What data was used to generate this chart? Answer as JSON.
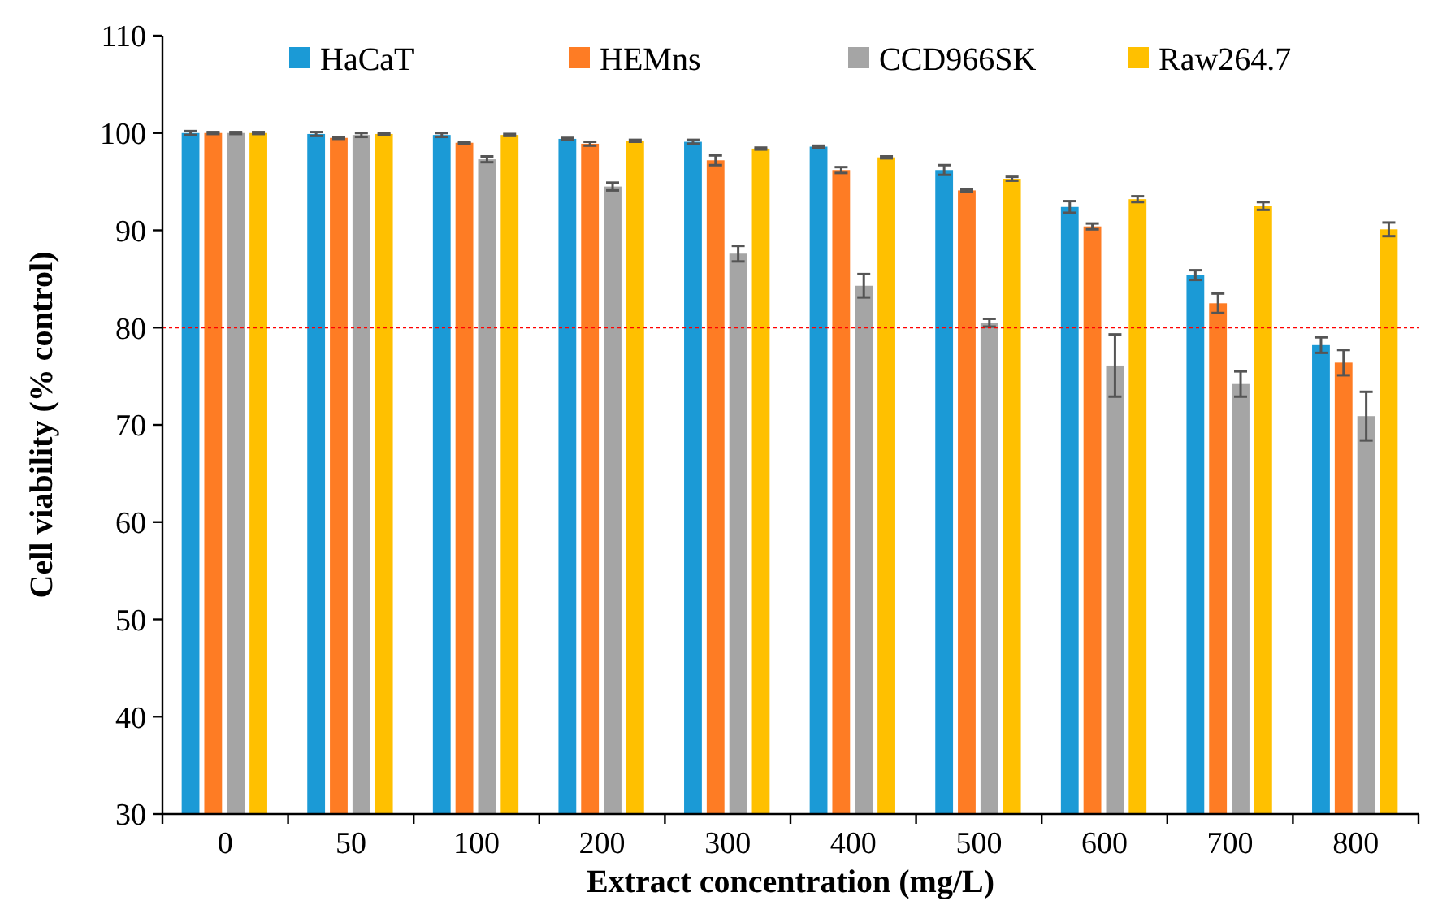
{
  "chart_data": {
    "type": "bar",
    "xlabel": "Extract concentration (mg/L)",
    "ylabel": "Cell viability (% control)",
    "categories": [
      "0",
      "50",
      "100",
      "200",
      "300",
      "400",
      "500",
      "600",
      "700",
      "800"
    ],
    "series": [
      {
        "name": "HaCaT",
        "color": "#1b9ad6",
        "values": [
          100,
          99.9,
          99.8,
          99.4,
          99.1,
          98.6,
          96.2,
          92.4,
          85.4,
          78.2
        ],
        "errors": [
          0.2,
          0.2,
          0.2,
          0.1,
          0.2,
          0.1,
          0.5,
          0.6,
          0.5,
          0.8
        ]
      },
      {
        "name": "HEMns",
        "color": "#fe7c24",
        "values": [
          100,
          99.5,
          99.0,
          98.9,
          97.2,
          96.2,
          94.1,
          90.4,
          82.5,
          76.4
        ],
        "errors": [
          0.1,
          0.1,
          0.1,
          0.2,
          0.5,
          0.3,
          0.1,
          0.3,
          1,
          1.3
        ]
      },
      {
        "name": "CCD966SK",
        "color": "#a5a5a5",
        "values": [
          100,
          99.8,
          97.3,
          94.5,
          87.6,
          84.3,
          80.5,
          76.1,
          74.2,
          70.9
        ],
        "errors": [
          0.1,
          0.2,
          0.3,
          0.4,
          0.8,
          1.2,
          0.4,
          3.2,
          1.3,
          2.5
        ]
      },
      {
        "name": "Raw264.7",
        "color": "#ffc000",
        "values": [
          100,
          99.9,
          99.8,
          99.2,
          98.4,
          97.5,
          95.3,
          93.2,
          92.5,
          90.1
        ],
        "errors": [
          0.1,
          0.1,
          0.1,
          0.1,
          0.1,
          0.1,
          0.2,
          0.3,
          0.4,
          0.7
        ]
      }
    ],
    "ylim": [
      30,
      110
    ],
    "yticks": [
      30,
      40,
      50,
      60,
      70,
      80,
      90,
      100,
      110
    ],
    "grid": false,
    "legend": "top",
    "ref_lines": [
      {
        "axis": "y",
        "value": 80,
        "color": "#ff0000",
        "line_style": "dotted"
      }
    ]
  }
}
